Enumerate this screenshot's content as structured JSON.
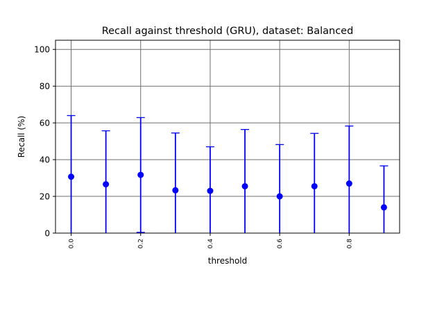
{
  "chart_data": {
    "type": "errorbar",
    "title": "Recall against threshold (GRU), dataset: Balanced",
    "xlabel": "threshold",
    "ylabel": "Recall (%)",
    "xlim": [
      -0.045,
      0.945
    ],
    "ylim": [
      0,
      105
    ],
    "x_ticks": [
      0.0,
      0.2,
      0.4,
      0.6,
      0.8
    ],
    "x_tick_labels": [
      "0.0",
      "0.2",
      "0.4",
      "0.6",
      "0.8"
    ],
    "y_ticks": [
      0,
      20,
      40,
      60,
      80,
      100
    ],
    "y_tick_labels": [
      "0",
      "20",
      "40",
      "60",
      "80",
      "100"
    ],
    "grid": true,
    "color": "#0000ff",
    "points": [
      {
        "x": 0.0,
        "y": 30.7,
        "lower": 0.0,
        "upper": 64.0
      },
      {
        "x": 0.1,
        "y": 26.6,
        "lower": 0.0,
        "upper": 55.7
      },
      {
        "x": 0.2,
        "y": 31.7,
        "lower": 0.4,
        "upper": 62.9
      },
      {
        "x": 0.3,
        "y": 23.3,
        "lower": 0.0,
        "upper": 54.5
      },
      {
        "x": 0.4,
        "y": 23.0,
        "lower": 0.0,
        "upper": 47.0
      },
      {
        "x": 0.5,
        "y": 25.5,
        "lower": 0.0,
        "upper": 56.4
      },
      {
        "x": 0.6,
        "y": 20.0,
        "lower": 0.0,
        "upper": 48.2
      },
      {
        "x": 0.7,
        "y": 25.5,
        "lower": 0.0,
        "upper": 54.3
      },
      {
        "x": 0.8,
        "y": 27.0,
        "lower": 0.0,
        "upper": 58.3
      },
      {
        "x": 0.9,
        "y": 14.0,
        "lower": 0.0,
        "upper": 36.6
      }
    ]
  }
}
